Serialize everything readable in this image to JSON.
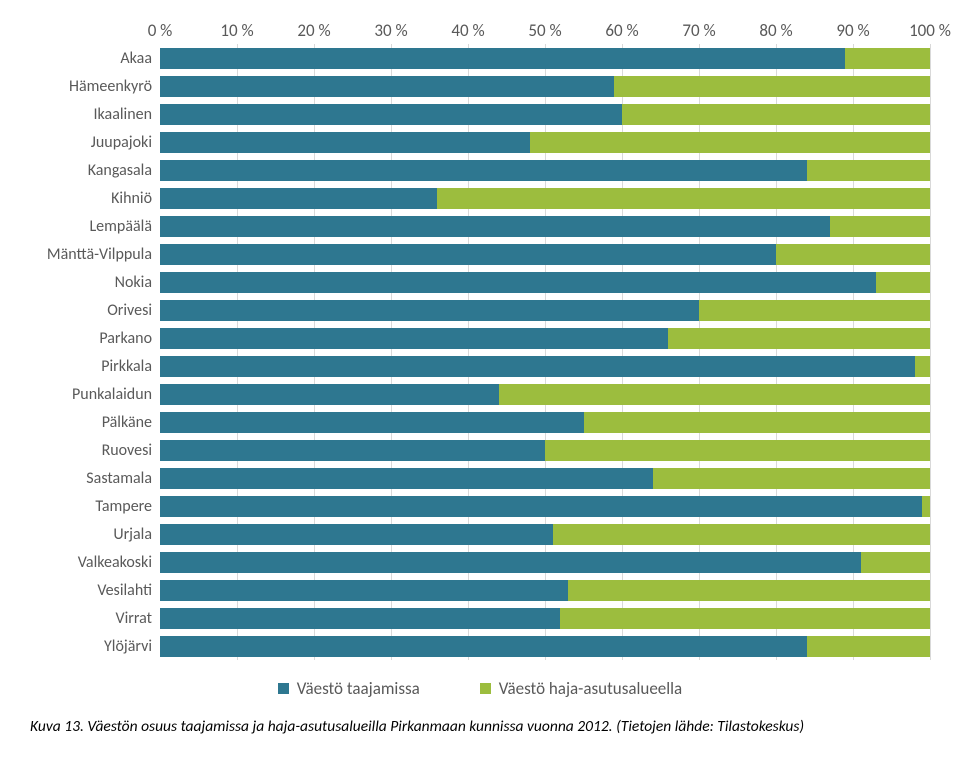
{
  "chart": {
    "type": "stacked-bar-horizontal",
    "background_color": "#ffffff",
    "grid_color": "#d9d9d9",
    "axis_color": "#888888",
    "label_color": "#595959",
    "label_fontsize": 16,
    "tick_fontsize": 17,
    "xlim": [
      0,
      100
    ],
    "xtick_step": 10,
    "xticks": [
      {
        "pos": 0,
        "label": "0 %"
      },
      {
        "pos": 10,
        "label": "10 %"
      },
      {
        "pos": 20,
        "label": "20 %"
      },
      {
        "pos": 30,
        "label": "30 %"
      },
      {
        "pos": 40,
        "label": "40 %"
      },
      {
        "pos": 50,
        "label": "50 %"
      },
      {
        "pos": 60,
        "label": "60 %"
      },
      {
        "pos": 70,
        "label": "70 %"
      },
      {
        "pos": 80,
        "label": "80 %"
      },
      {
        "pos": 90,
        "label": "90 %"
      },
      {
        "pos": 100,
        "label": "100 %"
      }
    ],
    "series": [
      {
        "name": "Väestö taajamissa",
        "color": "#2e7790"
      },
      {
        "name": "Väestö haja-asutusalueella",
        "color": "#9cbd3e"
      }
    ],
    "categories": [
      {
        "label": "Akaa",
        "values": [
          89,
          11
        ]
      },
      {
        "label": "Hämeenkyrö",
        "values": [
          59,
          41
        ]
      },
      {
        "label": "Ikaalinen",
        "values": [
          60,
          40
        ]
      },
      {
        "label": "Juupajoki",
        "values": [
          48,
          52
        ]
      },
      {
        "label": "Kangasala",
        "values": [
          84,
          16
        ]
      },
      {
        "label": "Kihniö",
        "values": [
          36,
          64
        ]
      },
      {
        "label": "Lempäälä",
        "values": [
          87,
          13
        ]
      },
      {
        "label": "Mänttä-Vilppula",
        "values": [
          80,
          20
        ]
      },
      {
        "label": "Nokia",
        "values": [
          93,
          7
        ]
      },
      {
        "label": "Orivesi",
        "values": [
          70,
          30
        ]
      },
      {
        "label": "Parkano",
        "values": [
          66,
          34
        ]
      },
      {
        "label": "Pirkkala",
        "values": [
          98,
          2
        ]
      },
      {
        "label": "Punkalaidun",
        "values": [
          44,
          56
        ]
      },
      {
        "label": "Pälkäne",
        "values": [
          55,
          45
        ]
      },
      {
        "label": "Ruovesi",
        "values": [
          50,
          50
        ]
      },
      {
        "label": "Sastamala",
        "values": [
          64,
          36
        ]
      },
      {
        "label": "Tampere",
        "values": [
          99,
          1
        ]
      },
      {
        "label": "Urjala",
        "values": [
          51,
          49
        ]
      },
      {
        "label": "Valkeakoski",
        "values": [
          91,
          9
        ]
      },
      {
        "label": "Vesilahti",
        "values": [
          53,
          47
        ]
      },
      {
        "label": "Virrat",
        "values": [
          52,
          48
        ]
      },
      {
        "label": "Ylöjärvi",
        "values": [
          84,
          16
        ]
      }
    ]
  },
  "caption": "Kuva 13. Väestön osuus taajamissa ja haja-asutusalueilla Pirkanmaan kunnissa vuonna 2012. (Tietojen lähde: Tilastokeskus)"
}
